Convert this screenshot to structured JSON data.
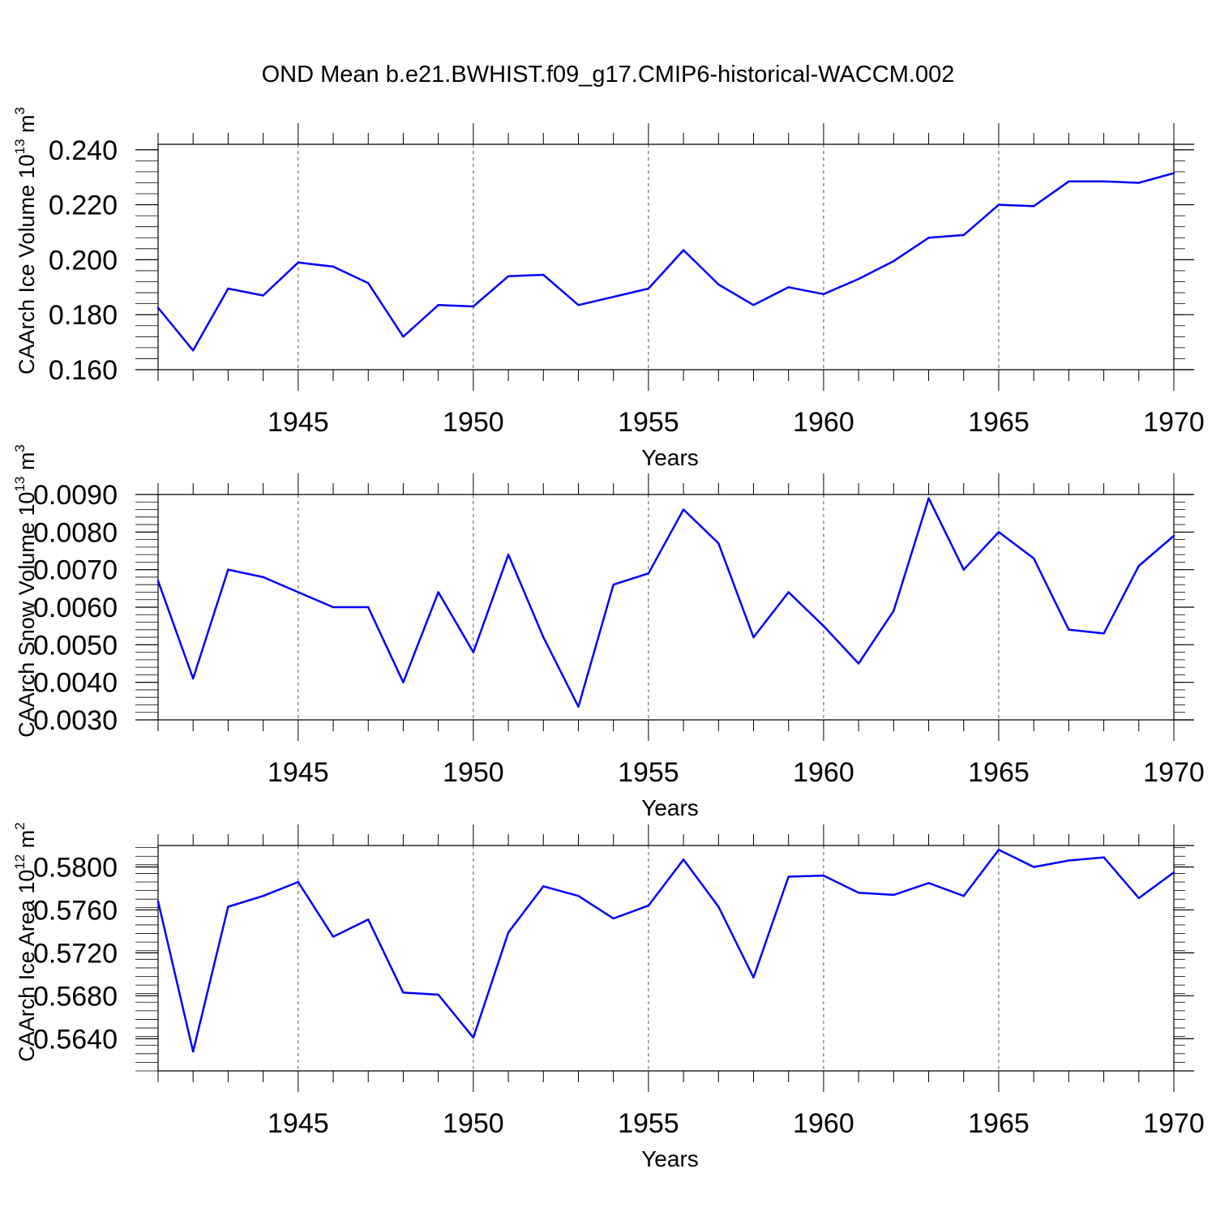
{
  "title": "OND Mean b.e21.BWHIST.f09_g17.CMIP6-historical-WACCM.002",
  "line_color": "#0000ff",
  "chart_data": [
    {
      "type": "line",
      "ylabel_main": "CAArch Ice Volume 10",
      "ylabel_exp": "13",
      "ylabel_unit": "m",
      "ylabel_unit_exp": "3",
      "xlabel": "Years",
      "xlim": [
        1941,
        1970
      ],
      "ylim": [
        0.16,
        0.242
      ],
      "yticks": [
        0.16,
        0.18,
        0.2,
        0.22,
        0.24
      ],
      "ytick_labels": [
        "0.160",
        "0.180",
        "0.200",
        "0.220",
        "0.240"
      ],
      "yminor_step": 0.004,
      "xticks": [
        1945,
        1950,
        1955,
        1960,
        1965,
        1970
      ],
      "xtick_labels": [
        "1945",
        "1950",
        "1955",
        "1960",
        "1965",
        "1970"
      ],
      "x": [
        1941,
        1942,
        1943,
        1944,
        1945,
        1946,
        1947,
        1948,
        1949,
        1950,
        1951,
        1952,
        1953,
        1954,
        1955,
        1956,
        1957,
        1958,
        1959,
        1960,
        1961,
        1962,
        1963,
        1964,
        1965,
        1966,
        1967,
        1968,
        1969,
        1970
      ],
      "y": [
        0.1825,
        0.167,
        0.1895,
        0.187,
        0.199,
        0.1975,
        0.1915,
        0.172,
        0.1835,
        0.183,
        0.194,
        0.1945,
        0.1835,
        0.1865,
        0.1895,
        0.2035,
        0.191,
        0.1835,
        0.19,
        0.1875,
        0.193,
        0.1995,
        0.208,
        0.209,
        0.22,
        0.2195,
        0.2285,
        0.2285,
        0.228,
        0.2315
      ]
    },
    {
      "type": "line",
      "ylabel_main": "CAArch Snow Volume 10",
      "ylabel_exp": "13",
      "ylabel_unit": "m",
      "ylabel_unit_exp": "3",
      "xlabel": "Years",
      "xlim": [
        1941,
        1970
      ],
      "ylim": [
        0.003,
        0.009
      ],
      "yticks": [
        0.003,
        0.004,
        0.005,
        0.006,
        0.007,
        0.008,
        0.009
      ],
      "ytick_labels": [
        "0.0030",
        "0.0040",
        "0.0050",
        "0.0060",
        "0.0070",
        "0.0080",
        "0.0090"
      ],
      "yminor_step": 0.0002,
      "xticks": [
        1945,
        1950,
        1955,
        1960,
        1965,
        1970
      ],
      "xtick_labels": [
        "1945",
        "1950",
        "1955",
        "1960",
        "1965",
        "1970"
      ],
      "x": [
        1941,
        1942,
        1943,
        1944,
        1945,
        1946,
        1947,
        1948,
        1949,
        1950,
        1951,
        1952,
        1953,
        1954,
        1955,
        1956,
        1957,
        1958,
        1959,
        1960,
        1961,
        1962,
        1963,
        1964,
        1965,
        1966,
        1967,
        1968,
        1969,
        1970
      ],
      "y": [
        0.0067,
        0.0041,
        0.007,
        0.0068,
        0.0064,
        0.006,
        0.006,
        0.004,
        0.0064,
        0.0048,
        0.0074,
        0.0052,
        0.00335,
        0.0066,
        0.0069,
        0.0086,
        0.0077,
        0.0052,
        0.0064,
        0.0055,
        0.0045,
        0.0059,
        0.0089,
        0.007,
        0.008,
        0.0073,
        0.0054,
        0.0053,
        0.0071,
        0.0079
      ]
    },
    {
      "type": "line",
      "ylabel_main": "CAArch Ice Area 10",
      "ylabel_exp": "12",
      "ylabel_unit": "m",
      "ylabel_unit_exp": "2",
      "xlabel": "Years",
      "xlim": [
        1941,
        1970
      ],
      "ylim": [
        0.561,
        0.582
      ],
      "yticks": [
        0.564,
        0.568,
        0.572,
        0.576,
        0.58
      ],
      "ytick_labels": [
        "0.5640",
        "0.5680",
        "0.5720",
        "0.5760",
        "0.5800"
      ],
      "yminor_step": 0.0008,
      "xticks": [
        1945,
        1950,
        1955,
        1960,
        1965,
        1970
      ],
      "xtick_labels": [
        "1945",
        "1950",
        "1955",
        "1960",
        "1965",
        "1970"
      ],
      "x": [
        1941,
        1942,
        1943,
        1944,
        1945,
        1946,
        1947,
        1948,
        1949,
        1950,
        1951,
        1952,
        1953,
        1954,
        1955,
        1956,
        1957,
        1958,
        1959,
        1960,
        1961,
        1962,
        1963,
        1964,
        1965,
        1966,
        1967,
        1968,
        1969,
        1970
      ],
      "y": [
        0.5768,
        0.5628,
        0.5763,
        0.5773,
        0.5786,
        0.5735,
        0.5751,
        0.5683,
        0.5681,
        0.5641,
        0.5739,
        0.5782,
        0.5773,
        0.5752,
        0.5764,
        0.5807,
        0.5763,
        0.5697,
        0.5791,
        0.5792,
        0.5776,
        0.5774,
        0.5785,
        0.5773,
        0.5816,
        0.58,
        0.5806,
        0.5809,
        0.5771,
        0.5795
      ]
    }
  ]
}
